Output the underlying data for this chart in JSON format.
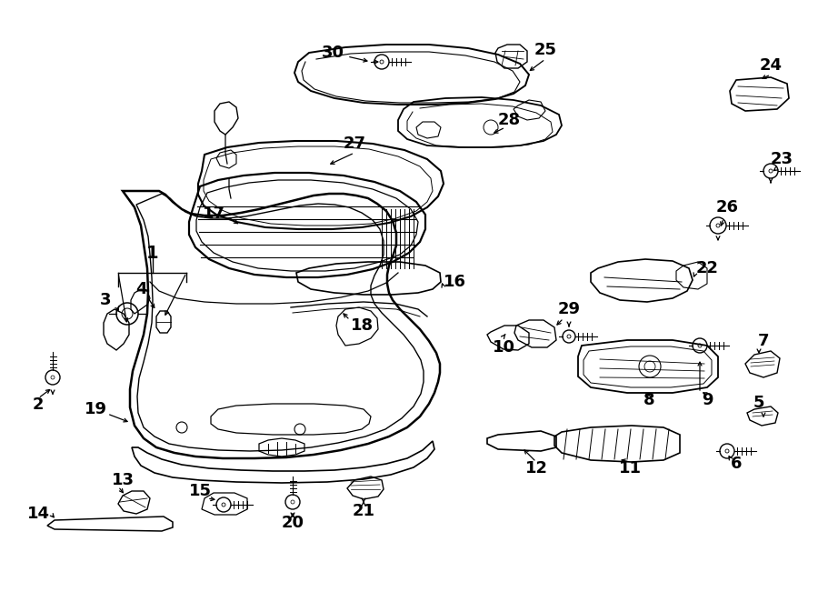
{
  "bg": "#ffffff",
  "lc": "#000000",
  "fw": 9.0,
  "fh": 6.62,
  "dpi": 100
}
